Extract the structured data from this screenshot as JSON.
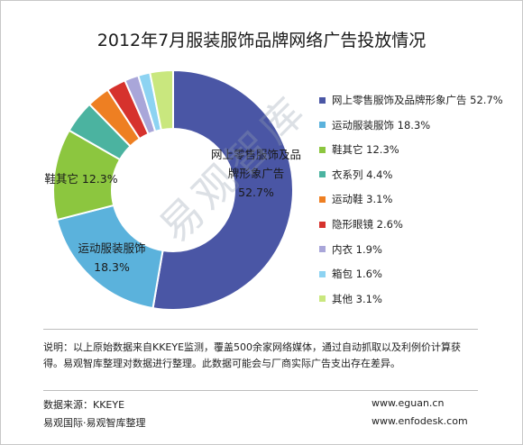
{
  "title": "2012年7月服装服饰品牌网络广告投放情况",
  "chart_data": {
    "type": "pie",
    "variant": "donut",
    "title": "2012年7月服装服饰品牌网络广告投放情况",
    "legend_position": "right",
    "slices": [
      {
        "label": "网上零售服饰及品牌形象广告",
        "value": 52.7,
        "display": "52.7%",
        "color": "#4A56A5"
      },
      {
        "label": "运动服装服饰",
        "value": 18.3,
        "display": "18.3%",
        "color": "#5BB2DC"
      },
      {
        "label": "鞋其它",
        "value": 12.3,
        "display": "12.3%",
        "color": "#8CC63F"
      },
      {
        "label": "衣系列",
        "value": 4.4,
        "display": "4.4%",
        "color": "#4BB3A0"
      },
      {
        "label": "运动鞋",
        "value": 3.1,
        "display": "3.1%",
        "color": "#EE7F22"
      },
      {
        "label": "隐形眼镜",
        "value": 2.6,
        "display": "2.6%",
        "color": "#D6322D"
      },
      {
        "label": "内衣",
        "value": 1.9,
        "display": "1.9%",
        "color": "#A9A6D9"
      },
      {
        "label": "箱包",
        "value": 1.6,
        "display": "1.6%",
        "color": "#8DD3F2"
      },
      {
        "label": "其他",
        "value": 3.1,
        "display": "3.1%",
        "color": "#C9E77E"
      }
    ],
    "data_labels": [
      {
        "lines": [
          "网上零售服饰及品",
          "牌形象广告",
          "52.7%"
        ]
      },
      {
        "lines": [
          "运动服装服饰",
          "18.3%"
        ]
      },
      {
        "lines": [
          "鞋其它 12.3%"
        ]
      }
    ]
  },
  "legend": [
    {
      "text": "网上零售服饰及品牌形象广告 52.7%",
      "color": "#4A56A5"
    },
    {
      "text": "运动服装服饰 18.3%",
      "color": "#5BB2DC"
    },
    {
      "text": "鞋其它 12.3%",
      "color": "#8CC63F"
    },
    {
      "text": "衣系列 4.4%",
      "color": "#4BB3A0"
    },
    {
      "text": "运动鞋 3.1%",
      "color": "#EE7F22"
    },
    {
      "text": "隐形眼镜 2.6%",
      "color": "#D6322D"
    },
    {
      "text": "内衣 1.9%",
      "color": "#A9A6D9"
    },
    {
      "text": "箱包 1.6%",
      "color": "#8DD3F2"
    },
    {
      "text": "其他 3.1%",
      "color": "#C9E77E"
    }
  ],
  "watermark": "易观智库",
  "note": "说明：以上原始数据来自KKEYE监测，覆盖500余家网络媒体，通过自动抓取以及利例价计算获得。易观智库整理对数据进行整理。此数据可能会与厂商实际广告支出存在差异。",
  "footer": {
    "source": "数据来源：KKEYE",
    "org": "易观国际·易观智库整理",
    "url1": "www.eguan.cn",
    "url2": "www.enfodesk.com"
  }
}
